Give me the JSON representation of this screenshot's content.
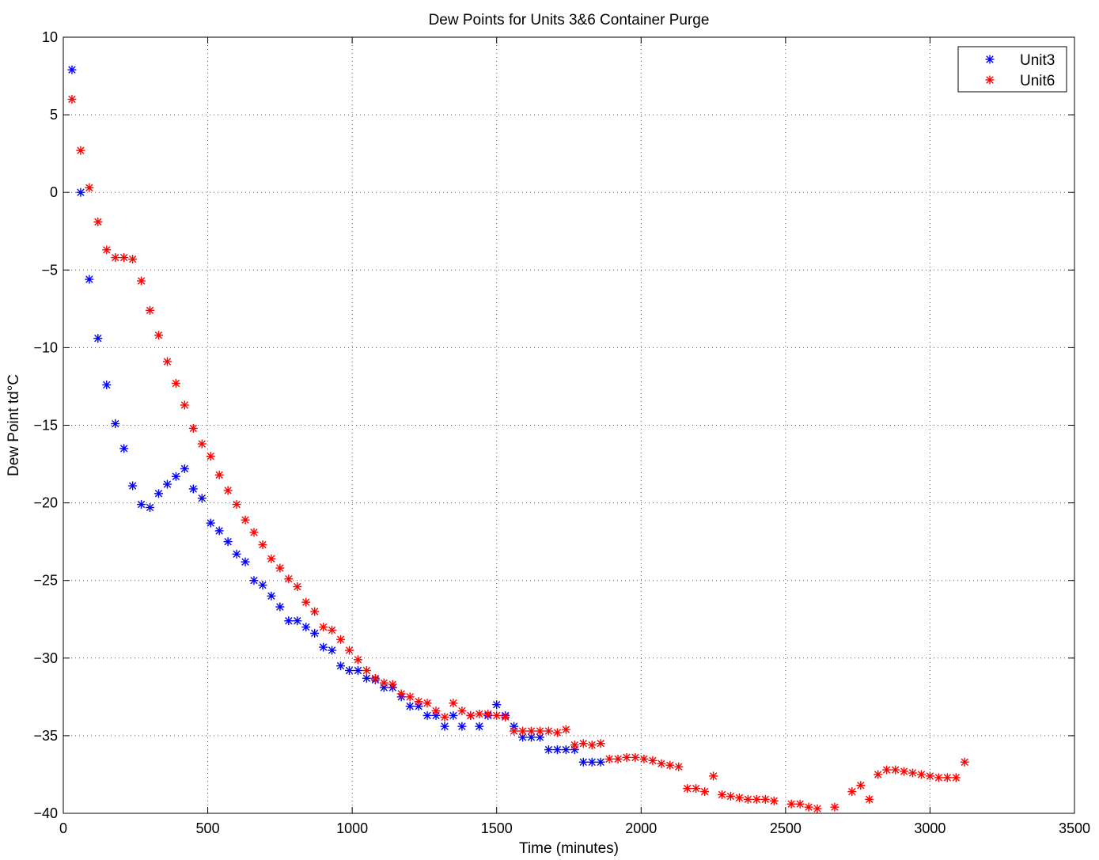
{
  "chart_data": {
    "type": "scatter",
    "title": "Dew Points for Units 3&6 Container Purge",
    "xlabel": "Time (minutes)",
    "ylabel": "Dew Point td°C",
    "xlim": [
      0,
      3500
    ],
    "ylim": [
      -40,
      10
    ],
    "xticks": [
      0,
      500,
      1000,
      1500,
      2000,
      2500,
      3000,
      3500
    ],
    "yticks": [
      10,
      5,
      0,
      -5,
      -10,
      -15,
      -20,
      -25,
      -30,
      -35,
      -40
    ],
    "xtick_labels": [
      "0",
      "500",
      "1000",
      "1500",
      "2000",
      "2500",
      "3000",
      "3500"
    ],
    "ytick_labels": [
      "10",
      "5",
      "0",
      "−5",
      "−10",
      "−15",
      "−20",
      "−25",
      "−30",
      "−35",
      "−40"
    ],
    "grid": true,
    "legend_position": "top-right",
    "marker": "*",
    "series": [
      {
        "name": "Unit3",
        "color": "#0000ff",
        "points": [
          [
            30,
            7.9
          ],
          [
            60,
            0
          ],
          [
            90,
            -5.6
          ],
          [
            120,
            -9.4
          ],
          [
            150,
            -12.4
          ],
          [
            180,
            -14.9
          ],
          [
            210,
            -16.5
          ],
          [
            240,
            -18.9
          ],
          [
            270,
            -20.1
          ],
          [
            300,
            -20.3
          ],
          [
            330,
            -19.4
          ],
          [
            360,
            -18.8
          ],
          [
            390,
            -18.3
          ],
          [
            420,
            -17.8
          ],
          [
            450,
            -19.1
          ],
          [
            480,
            -19.7
          ],
          [
            510,
            -21.3
          ],
          [
            540,
            -21.8
          ],
          [
            570,
            -22.5
          ],
          [
            600,
            -23.3
          ],
          [
            630,
            -23.8
          ],
          [
            660,
            -25.0
          ],
          [
            690,
            -25.3
          ],
          [
            720,
            -26.0
          ],
          [
            750,
            -26.7
          ],
          [
            780,
            -27.6
          ],
          [
            810,
            -27.6
          ],
          [
            840,
            -28.0
          ],
          [
            870,
            -28.4
          ],
          [
            900,
            -29.3
          ],
          [
            930,
            -29.5
          ],
          [
            960,
            -30.5
          ],
          [
            990,
            -30.8
          ],
          [
            1020,
            -30.8
          ],
          [
            1050,
            -31.3
          ],
          [
            1080,
            -31.4
          ],
          [
            1110,
            -31.9
          ],
          [
            1140,
            -31.9
          ],
          [
            1170,
            -32.5
          ],
          [
            1200,
            -33.1
          ],
          [
            1230,
            -33.1
          ],
          [
            1260,
            -33.7
          ],
          [
            1290,
            -33.7
          ],
          [
            1320,
            -34.4
          ],
          [
            1350,
            -33.7
          ],
          [
            1380,
            -34.4
          ],
          [
            1410,
            -33.7
          ],
          [
            1440,
            -34.4
          ],
          [
            1470,
            -33.7
          ],
          [
            1500,
            -33.0
          ],
          [
            1530,
            -33.7
          ],
          [
            1560,
            -34.4
          ],
          [
            1590,
            -35.1
          ],
          [
            1620,
            -35.1
          ],
          [
            1650,
            -35.1
          ],
          [
            1680,
            -35.9
          ],
          [
            1710,
            -35.9
          ],
          [
            1740,
            -35.9
          ],
          [
            1770,
            -35.9
          ],
          [
            1800,
            -36.7
          ],
          [
            1830,
            -36.7
          ],
          [
            1860,
            -36.7
          ]
        ]
      },
      {
        "name": "Unit6",
        "color": "#ff0000",
        "points": [
          [
            30,
            6.0
          ],
          [
            60,
            2.7
          ],
          [
            90,
            0.3
          ],
          [
            120,
            -1.9
          ],
          [
            150,
            -3.7
          ],
          [
            180,
            -4.2
          ],
          [
            210,
            -4.2
          ],
          [
            240,
            -4.3
          ],
          [
            270,
            -5.7
          ],
          [
            300,
            -7.6
          ],
          [
            330,
            -9.2
          ],
          [
            360,
            -10.9
          ],
          [
            390,
            -12.3
          ],
          [
            420,
            -13.7
          ],
          [
            450,
            -15.2
          ],
          [
            480,
            -16.2
          ],
          [
            510,
            -17.0
          ],
          [
            540,
            -18.2
          ],
          [
            570,
            -19.2
          ],
          [
            600,
            -20.1
          ],
          [
            630,
            -21.1
          ],
          [
            660,
            -21.9
          ],
          [
            690,
            -22.7
          ],
          [
            720,
            -23.6
          ],
          [
            750,
            -24.2
          ],
          [
            780,
            -24.9
          ],
          [
            810,
            -25.4
          ],
          [
            840,
            -26.4
          ],
          [
            870,
            -27.0
          ],
          [
            900,
            -28.0
          ],
          [
            930,
            -28.2
          ],
          [
            960,
            -28.8
          ],
          [
            990,
            -29.5
          ],
          [
            1020,
            -30.1
          ],
          [
            1050,
            -30.8
          ],
          [
            1080,
            -31.3
          ],
          [
            1110,
            -31.6
          ],
          [
            1140,
            -31.7
          ],
          [
            1170,
            -32.3
          ],
          [
            1200,
            -32.5
          ],
          [
            1230,
            -32.8
          ],
          [
            1260,
            -32.9
          ],
          [
            1290,
            -33.4
          ],
          [
            1320,
            -33.8
          ],
          [
            1350,
            -32.9
          ],
          [
            1380,
            -33.4
          ],
          [
            1410,
            -33.7
          ],
          [
            1440,
            -33.6
          ],
          [
            1470,
            -33.6
          ],
          [
            1500,
            -33.7
          ],
          [
            1530,
            -33.8
          ],
          [
            1560,
            -34.7
          ],
          [
            1590,
            -34.7
          ],
          [
            1620,
            -34.7
          ],
          [
            1650,
            -34.7
          ],
          [
            1680,
            -34.7
          ],
          [
            1710,
            -34.8
          ],
          [
            1740,
            -34.6
          ],
          [
            1770,
            -35.6
          ],
          [
            1800,
            -35.5
          ],
          [
            1830,
            -35.6
          ],
          [
            1860,
            -35.5
          ],
          [
            1890,
            -36.5
          ],
          [
            1920,
            -36.5
          ],
          [
            1950,
            -36.4
          ],
          [
            1980,
            -36.4
          ],
          [
            2010,
            -36.5
          ],
          [
            2040,
            -36.6
          ],
          [
            2070,
            -36.8
          ],
          [
            2100,
            -36.9
          ],
          [
            2130,
            -37.0
          ],
          [
            2160,
            -38.4
          ],
          [
            2190,
            -38.4
          ],
          [
            2220,
            -38.6
          ],
          [
            2250,
            -37.6
          ],
          [
            2280,
            -38.8
          ],
          [
            2310,
            -38.9
          ],
          [
            2340,
            -39.0
          ],
          [
            2370,
            -39.1
          ],
          [
            2400,
            -39.1
          ],
          [
            2430,
            -39.1
          ],
          [
            2460,
            -39.2
          ],
          [
            2520,
            -39.4
          ],
          [
            2550,
            -39.4
          ],
          [
            2580,
            -39.6
          ],
          [
            2610,
            -39.7
          ],
          [
            2670,
            -39.6
          ],
          [
            2730,
            -38.6
          ],
          [
            2760,
            -38.2
          ],
          [
            2790,
            -39.1
          ],
          [
            2820,
            -37.5
          ],
          [
            2850,
            -37.2
          ],
          [
            2880,
            -37.2
          ],
          [
            2910,
            -37.3
          ],
          [
            2940,
            -37.4
          ],
          [
            2970,
            -37.5
          ],
          [
            3000,
            -37.6
          ],
          [
            3030,
            -37.7
          ],
          [
            3060,
            -37.7
          ],
          [
            3090,
            -37.7
          ],
          [
            3120,
            -36.7
          ]
        ]
      }
    ]
  }
}
